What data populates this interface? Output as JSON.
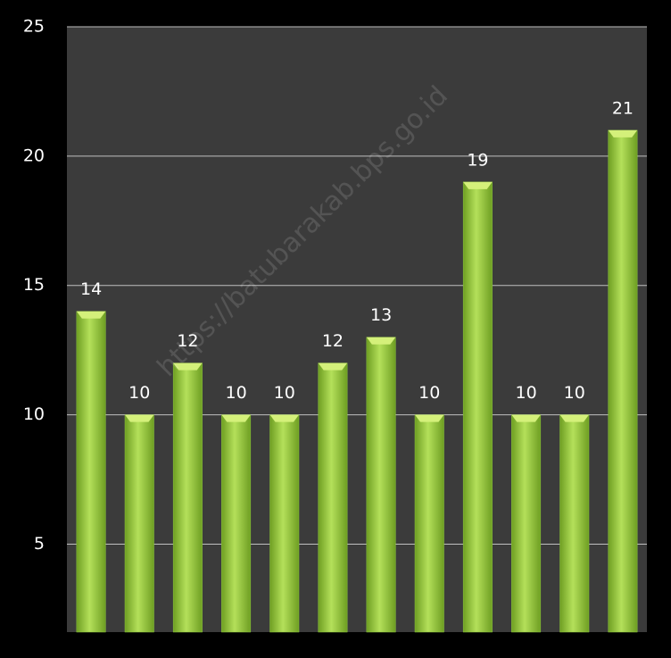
{
  "chart_data": {
    "type": "bar",
    "categories": [
      null,
      null,
      null,
      null,
      null,
      null,
      null,
      null,
      null,
      null,
      null,
      null
    ],
    "values": [
      14,
      10,
      12,
      10,
      10,
      12,
      13,
      10,
      19,
      10,
      10,
      21
    ],
    "color": "#8dc63f",
    "ylim": [
      1.6,
      25
    ],
    "yticks": [
      5,
      10,
      15,
      20,
      25
    ],
    "grid": true,
    "annotation": "https://batubarakab.bps.go.id"
  }
}
